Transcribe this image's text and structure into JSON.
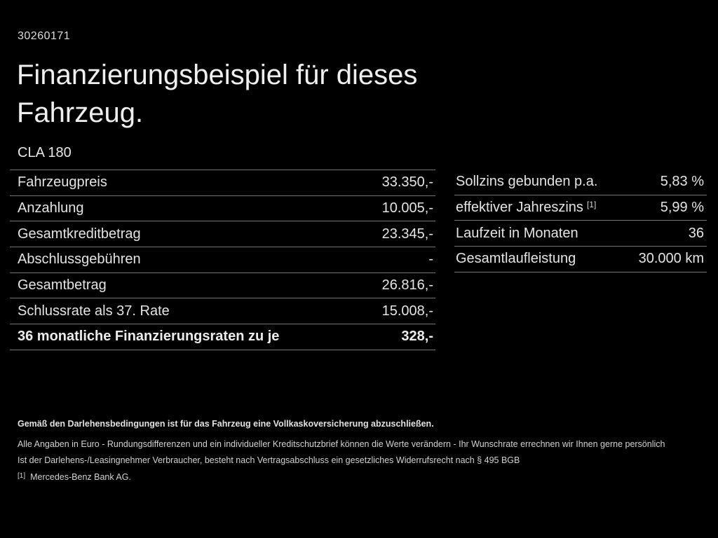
{
  "page": {
    "background": "#000000",
    "text_color": "#e4e4e4",
    "divider_color": "#757575"
  },
  "header": {
    "doc_id": "30260171",
    "title": "Finanzierungsbeispiel für dieses\nFahrzeug.",
    "model": "CLA 180"
  },
  "finance_table": {
    "rows": [
      {
        "label": "Fahrzeugpreis",
        "value": "33.350,-"
      },
      {
        "label": "Anzahlung",
        "value": "10.005,-"
      },
      {
        "label": "Gesamtkreditbetrag",
        "value": "23.345,-"
      },
      {
        "label": "Abschlussgebühren",
        "value": "-"
      },
      {
        "label": "Gesamtbetrag",
        "value": "26.816,-"
      },
      {
        "label": "Schlussrate als 37. Rate",
        "value": "15.008,-"
      },
      {
        "label": "36 monatliche Finanzierungsraten zu je",
        "value": "328,-"
      }
    ]
  },
  "conditions_table": {
    "rows": [
      {
        "label": "Sollzins gebunden p.a.",
        "value": "5,83 %"
      },
      {
        "label": "effektiver Jahreszins",
        "sup": "[1]",
        "value": "5,99 %"
      },
      {
        "label": "Laufzeit in Monaten",
        "value": "36"
      },
      {
        "label": "Gesamtlaufleistung",
        "value": "30.000 km"
      }
    ]
  },
  "footer": {
    "insurance_note": "Gemäß den Darlehensbedingungen ist für das Fahrzeug eine Vollkaskoversicherung abzuschließen.",
    "disclaimer_1": "Alle Angaben in Euro - Rundungsdifferenzen und ein individueller Kreditschutzbrief können die Werte verändern - Ihr Wunschrate errechnen wir Ihnen gerne persönlich",
    "disclaimer_2": "Ist der Darlehens-/Leasingnehmer Verbraucher, besteht nach Vertragsabschluss ein gesetzliches Widerrufsrecht nach § 495 BGB",
    "footnote_marker": "[1]",
    "footnote_text": "Mercedes-Benz Bank AG."
  }
}
